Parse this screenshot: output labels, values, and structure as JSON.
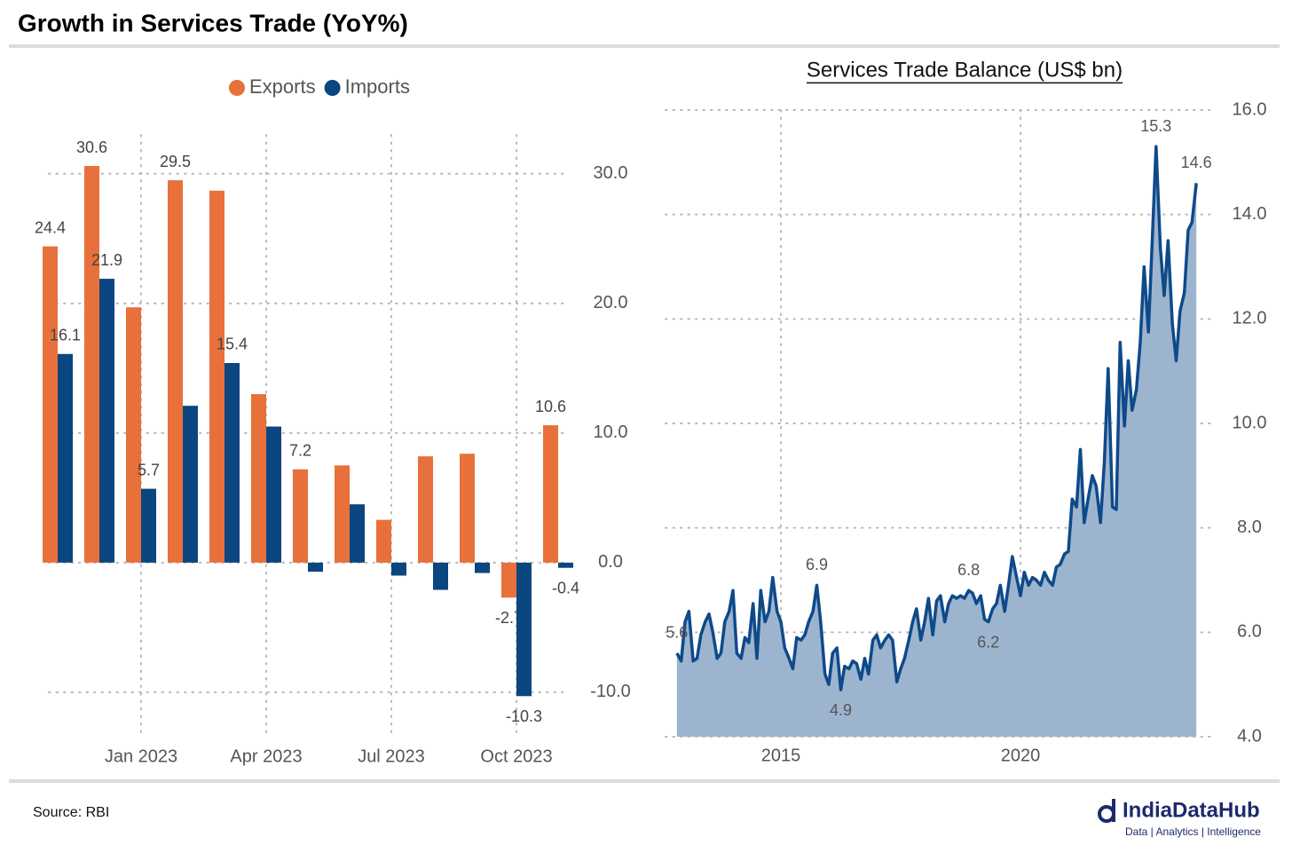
{
  "title": "Growth in Services Trade (YoY%)",
  "source": "Source: RBI",
  "logo": {
    "name": "IndiaDataHub",
    "tagline": "Data | Analytics | Intelligence"
  },
  "chart_data": [
    {
      "type": "bar",
      "categories": [
        null,
        null,
        "Jan 2023",
        null,
        null,
        "Apr 2023",
        null,
        null,
        "Jul 2023",
        null,
        null,
        "Oct 2023",
        null
      ],
      "series": [
        {
          "name": "Exports",
          "color": "#e8703a",
          "values": [
            24.4,
            30.6,
            19.7,
            29.5,
            28.7,
            13.0,
            7.2,
            7.5,
            3.3,
            8.2,
            8.4,
            -2.7,
            10.6
          ],
          "value_labels": [
            "24.4",
            "30.6",
            null,
            "29.5",
            null,
            null,
            "7.2",
            null,
            null,
            null,
            null,
            "-2.7",
            "10.6"
          ]
        },
        {
          "name": "Imports",
          "color": "#0b4680",
          "values": [
            16.1,
            21.9,
            5.7,
            12.1,
            15.4,
            10.5,
            -0.7,
            4.5,
            -1.0,
            -2.1,
            -0.8,
            -10.3,
            -0.4
          ],
          "value_labels": [
            "16.1",
            "21.9",
            "5.7",
            null,
            "15.4",
            null,
            null,
            null,
            null,
            null,
            null,
            "-10.3",
            "-0.4"
          ]
        }
      ],
      "ylim": [
        -13.5,
        33
      ],
      "yticks": [
        {
          "value": -10,
          "label": "-10.0"
        },
        {
          "value": 0,
          "label": "0.0"
        },
        {
          "value": 10,
          "label": "10.0"
        },
        {
          "value": 20,
          "label": "20.0"
        },
        {
          "value": 30,
          "label": "30.0"
        }
      ],
      "grid": true,
      "legend": "top",
      "y_axis_side": "right"
    },
    {
      "type": "area",
      "title": "Services Trade Balance (US$ bn)",
      "x": [
        2012.83,
        2012.92,
        2013.0,
        2013.08,
        2013.17,
        2013.25,
        2013.33,
        2013.42,
        2013.5,
        2013.58,
        2013.67,
        2013.75,
        2013.83,
        2013.92,
        2014.0,
        2014.08,
        2014.17,
        2014.25,
        2014.33,
        2014.42,
        2014.5,
        2014.58,
        2014.67,
        2014.75,
        2014.83,
        2014.92,
        2015.0,
        2015.08,
        2015.17,
        2015.25,
        2015.33,
        2015.42,
        2015.5,
        2015.58,
        2015.67,
        2015.75,
        2015.83,
        2015.92,
        2016.0,
        2016.08,
        2016.17,
        2016.25,
        2016.33,
        2016.42,
        2016.5,
        2016.58,
        2016.67,
        2016.75,
        2016.83,
        2016.92,
        2017.0,
        2017.08,
        2017.17,
        2017.25,
        2017.33,
        2017.42,
        2017.5,
        2017.58,
        2017.67,
        2017.75,
        2017.83,
        2017.92,
        2018.0,
        2018.08,
        2018.17,
        2018.25,
        2018.33,
        2018.42,
        2018.5,
        2018.58,
        2018.67,
        2018.75,
        2018.83,
        2018.92,
        2019.0,
        2019.08,
        2019.17,
        2019.25,
        2019.33,
        2019.42,
        2019.5,
        2019.58,
        2019.67,
        2019.75,
        2019.83,
        2019.92,
        2020.0,
        2020.08,
        2020.17,
        2020.25,
        2020.33,
        2020.42,
        2020.5,
        2020.58,
        2020.67,
        2020.75,
        2020.83,
        2020.92,
        2021.0,
        2021.08,
        2021.17,
        2021.25,
        2021.33,
        2021.42,
        2021.5,
        2021.58,
        2021.67,
        2021.75,
        2021.83,
        2021.92,
        2022.0,
        2022.08,
        2022.17,
        2022.25,
        2022.33,
        2022.42,
        2022.5,
        2022.58,
        2022.67,
        2022.75,
        2022.83,
        2022.92,
        2023.0,
        2023.08,
        2023.17,
        2023.25,
        2023.33,
        2023.42,
        2023.5,
        2023.58,
        2023.67
      ],
      "values": [
        5.6,
        5.45,
        6.2,
        6.4,
        5.45,
        5.5,
        5.95,
        6.2,
        6.35,
        6.0,
        5.5,
        5.6,
        6.2,
        6.4,
        6.8,
        5.6,
        5.5,
        5.9,
        5.8,
        6.55,
        5.5,
        6.8,
        6.2,
        6.4,
        7.05,
        6.4,
        6.2,
        5.7,
        5.5,
        5.3,
        5.9,
        5.85,
        5.95,
        6.2,
        6.4,
        6.9,
        6.2,
        5.2,
        5.0,
        5.6,
        5.7,
        4.9,
        5.35,
        5.3,
        5.45,
        5.4,
        5.1,
        5.5,
        5.2,
        5.85,
        5.95,
        5.7,
        5.85,
        5.95,
        5.85,
        5.05,
        5.3,
        5.5,
        5.85,
        6.2,
        6.45,
        5.85,
        6.2,
        6.65,
        5.95,
        6.6,
        6.7,
        6.2,
        6.55,
        6.7,
        6.65,
        6.7,
        6.65,
        6.8,
        6.75,
        6.55,
        6.7,
        6.25,
        6.2,
        6.45,
        6.55,
        6.9,
        6.4,
        6.9,
        7.45,
        7.05,
        6.7,
        7.15,
        6.9,
        7.05,
        7.0,
        6.9,
        7.15,
        7.0,
        6.9,
        7.25,
        7.3,
        7.5,
        7.55,
        8.55,
        8.4,
        9.5,
        8.1,
        8.6,
        9.0,
        8.8,
        8.1,
        9.25,
        11.05,
        8.4,
        8.35,
        11.55,
        9.95,
        11.2,
        10.25,
        10.65,
        11.55,
        13.0,
        11.75,
        13.5,
        15.3,
        13.35,
        12.45,
        13.5,
        11.9,
        11.2,
        12.15,
        12.5,
        13.7,
        13.85,
        14.6
      ],
      "value_labels": [
        "5.6",
        null,
        null,
        null,
        null,
        null,
        null,
        null,
        null,
        null,
        null,
        null,
        null,
        null,
        null,
        null,
        null,
        null,
        null,
        null,
        null,
        null,
        null,
        null,
        null,
        null,
        null,
        null,
        null,
        null,
        null,
        null,
        null,
        null,
        null,
        "6.9",
        null,
        null,
        null,
        null,
        null,
        "4.9",
        null,
        null,
        null,
        null,
        null,
        null,
        null,
        null,
        null,
        null,
        null,
        null,
        null,
        null,
        null,
        null,
        null,
        null,
        null,
        null,
        null,
        null,
        null,
        null,
        null,
        null,
        null,
        null,
        null,
        null,
        null,
        "6.8",
        null,
        null,
        null,
        null,
        "6.2",
        null,
        null,
        null,
        null,
        null,
        null,
        null,
        null,
        null,
        null,
        null,
        null,
        null,
        null,
        null,
        null,
        null,
        null,
        null,
        null,
        null,
        null,
        null,
        null,
        null,
        null,
        null,
        null,
        null,
        null,
        null,
        null,
        null,
        null,
        null,
        null,
        null,
        null,
        null,
        null,
        null,
        "15.3",
        null,
        null,
        null,
        null,
        null,
        null,
        null,
        null,
        null,
        "14.6"
      ],
      "color": "#0e4a8a",
      "fill_color": "#9db4cf",
      "xlim": [
        2012.5,
        2024
      ],
      "xticks": [
        2015,
        2020
      ],
      "ylim": [
        4,
        16
      ],
      "yticks": [
        {
          "value": 4,
          "label": "4.0"
        },
        {
          "value": 6,
          "label": "6.0"
        },
        {
          "value": 8,
          "label": "8.0"
        },
        {
          "value": 10,
          "label": "10.0"
        },
        {
          "value": 12,
          "label": "12.0"
        },
        {
          "value": 14,
          "label": "14.0"
        },
        {
          "value": 16,
          "label": "16.0"
        }
      ],
      "grid": true,
      "y_axis_side": "right"
    }
  ]
}
